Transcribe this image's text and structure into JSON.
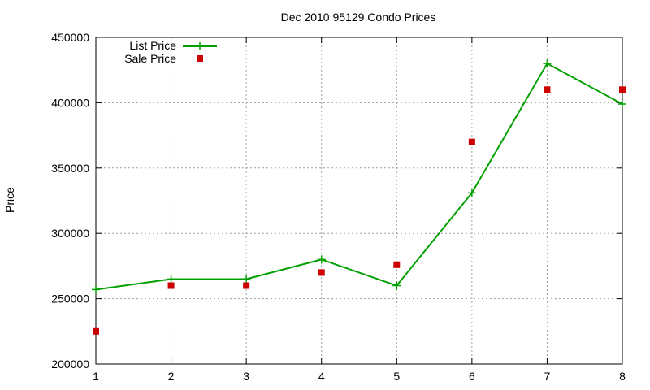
{
  "chart_data": {
    "type": "line",
    "title": "Dec 2010 95129 Condo Prices",
    "xlabel": "",
    "ylabel": "Price",
    "xlim": [
      1,
      8
    ],
    "ylim": [
      200000,
      450000
    ],
    "xticks": [
      "1",
      "2",
      "3",
      "4",
      "5",
      "6",
      "7",
      "8"
    ],
    "yticks": [
      "200000",
      "250000",
      "300000",
      "350000",
      "400000",
      "450000"
    ],
    "grid": true,
    "legend_position": "top-left",
    "series": [
      {
        "name": "List Price",
        "style": "line-with-plus-markers",
        "color": "#00a000",
        "x": [
          1,
          2,
          3,
          4,
          5,
          6,
          7,
          8
        ],
        "y": [
          257000,
          265000,
          265000,
          280000,
          260000,
          331000,
          430000,
          399000
        ]
      },
      {
        "name": "Sale Price",
        "style": "square-markers",
        "color": "#cc0000",
        "x": [
          1,
          2,
          3,
          4,
          5,
          6,
          7,
          8
        ],
        "y": [
          225000,
          260000,
          260000,
          270000,
          276000,
          370000,
          410000,
          410000
        ]
      }
    ]
  }
}
